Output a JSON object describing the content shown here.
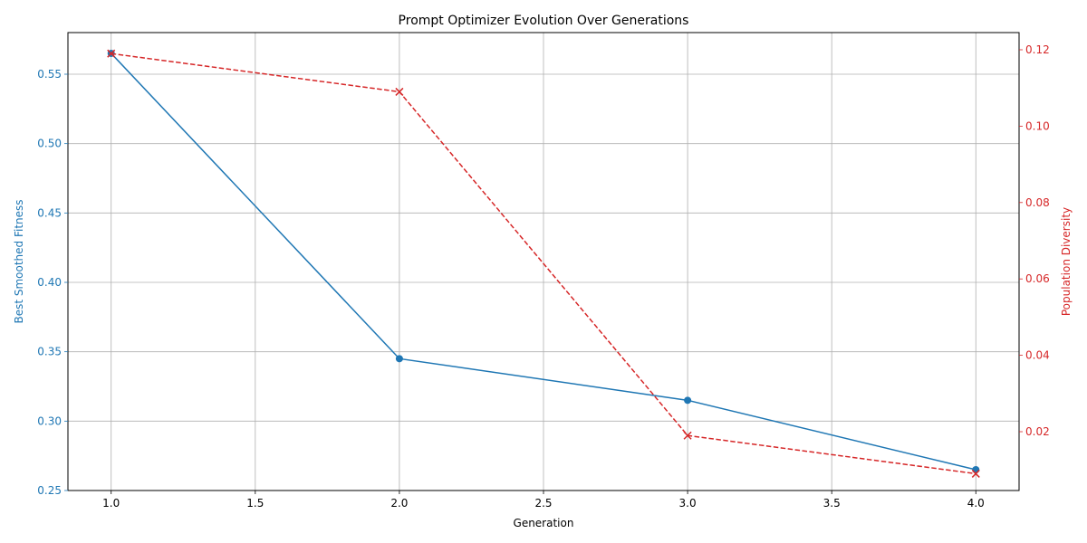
{
  "chart_data": {
    "type": "line",
    "title": "Prompt Optimizer Evolution Over Generations",
    "xlabel": "Generation",
    "ylabel_left": "Best Smoothed Fitness",
    "ylabel_right": "Population Diversity",
    "x": [
      1.0,
      2.0,
      3.0,
      4.0
    ],
    "xlim": [
      0.85,
      4.15
    ],
    "xticks": [
      "1.0",
      "1.5",
      "2.0",
      "2.5",
      "3.0",
      "3.5",
      "4.0"
    ],
    "ylim_left": [
      0.25,
      0.58
    ],
    "yticks_left": [
      "0.25",
      "0.30",
      "0.35",
      "0.40",
      "0.45",
      "0.50",
      "0.55"
    ],
    "ylim_right": [
      0.0046,
      0.1245
    ],
    "yticks_right": [
      "0.02",
      "0.04",
      "0.06",
      "0.08",
      "0.10",
      "0.12"
    ],
    "grid": true,
    "series": [
      {
        "axis": "left",
        "values": [
          0.565,
          0.345,
          0.315,
          0.265
        ],
        "color": "#1f77b4",
        "marker": "circle",
        "linestyle": "solid"
      },
      {
        "axis": "right",
        "values": [
          0.119,
          0.109,
          0.019,
          0.009
        ],
        "color": "#d62728",
        "marker": "x",
        "linestyle": "dashed"
      }
    ]
  }
}
